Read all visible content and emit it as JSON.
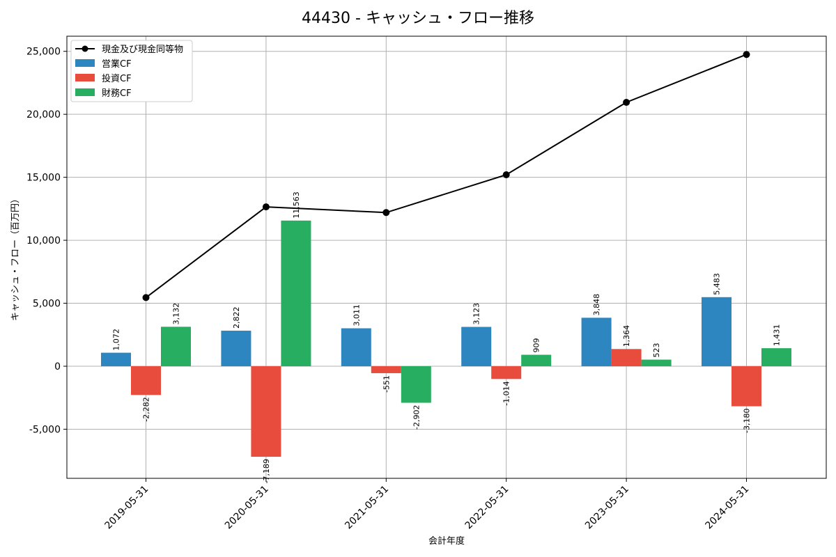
{
  "chart_data": {
    "type": "bar",
    "title": "44430 - キャッシュ・フロー推移",
    "xlabel": "会計年度",
    "ylabel": "キャッシュ・フロー（百万円）",
    "ylim": [
      -8900,
      26200
    ],
    "yticks": [
      -5000,
      0,
      5000,
      10000,
      15000,
      20000,
      25000
    ],
    "ytick_labels": [
      "-5,000",
      "0",
      "5,000",
      "10,000",
      "15,000",
      "20,000",
      "25,000"
    ],
    "categories": [
      "2019-05-31",
      "2020-05-31",
      "2021-05-31",
      "2022-05-31",
      "2023-05-31",
      "2024-05-31"
    ],
    "grid": true,
    "legend_position": "top-left",
    "series": [
      {
        "name": "営業CF",
        "kind": "bar",
        "color": "#2e86c1",
        "values": [
          1072,
          2822,
          3011,
          3123,
          3848,
          5483
        ],
        "labels": [
          "1,072",
          "2,822",
          "3,011",
          "3,123",
          "3,848",
          "5,483"
        ]
      },
      {
        "name": "投資CF",
        "kind": "bar",
        "color": "#e74c3c",
        "values": [
          -2282,
          -7189,
          -551,
          -1014,
          1364,
          -3180
        ],
        "labels": [
          "-2,282",
          "-7,189",
          "-551",
          "-1,014",
          "1,364",
          "-3,180"
        ]
      },
      {
        "name": "財務CF",
        "kind": "bar",
        "color": "#27ae60",
        "values": [
          3132,
          11563,
          -2902,
          909,
          523,
          1431
        ],
        "labels": [
          "3,132",
          "11,563",
          "-2,902",
          "909",
          "523",
          "1,431"
        ]
      }
    ],
    "line_series": {
      "name": "現金及び現金同等物",
      "kind": "line",
      "color": "#000000",
      "values": [
        5450,
        12650,
        12200,
        15200,
        20950,
        24750
      ]
    }
  }
}
